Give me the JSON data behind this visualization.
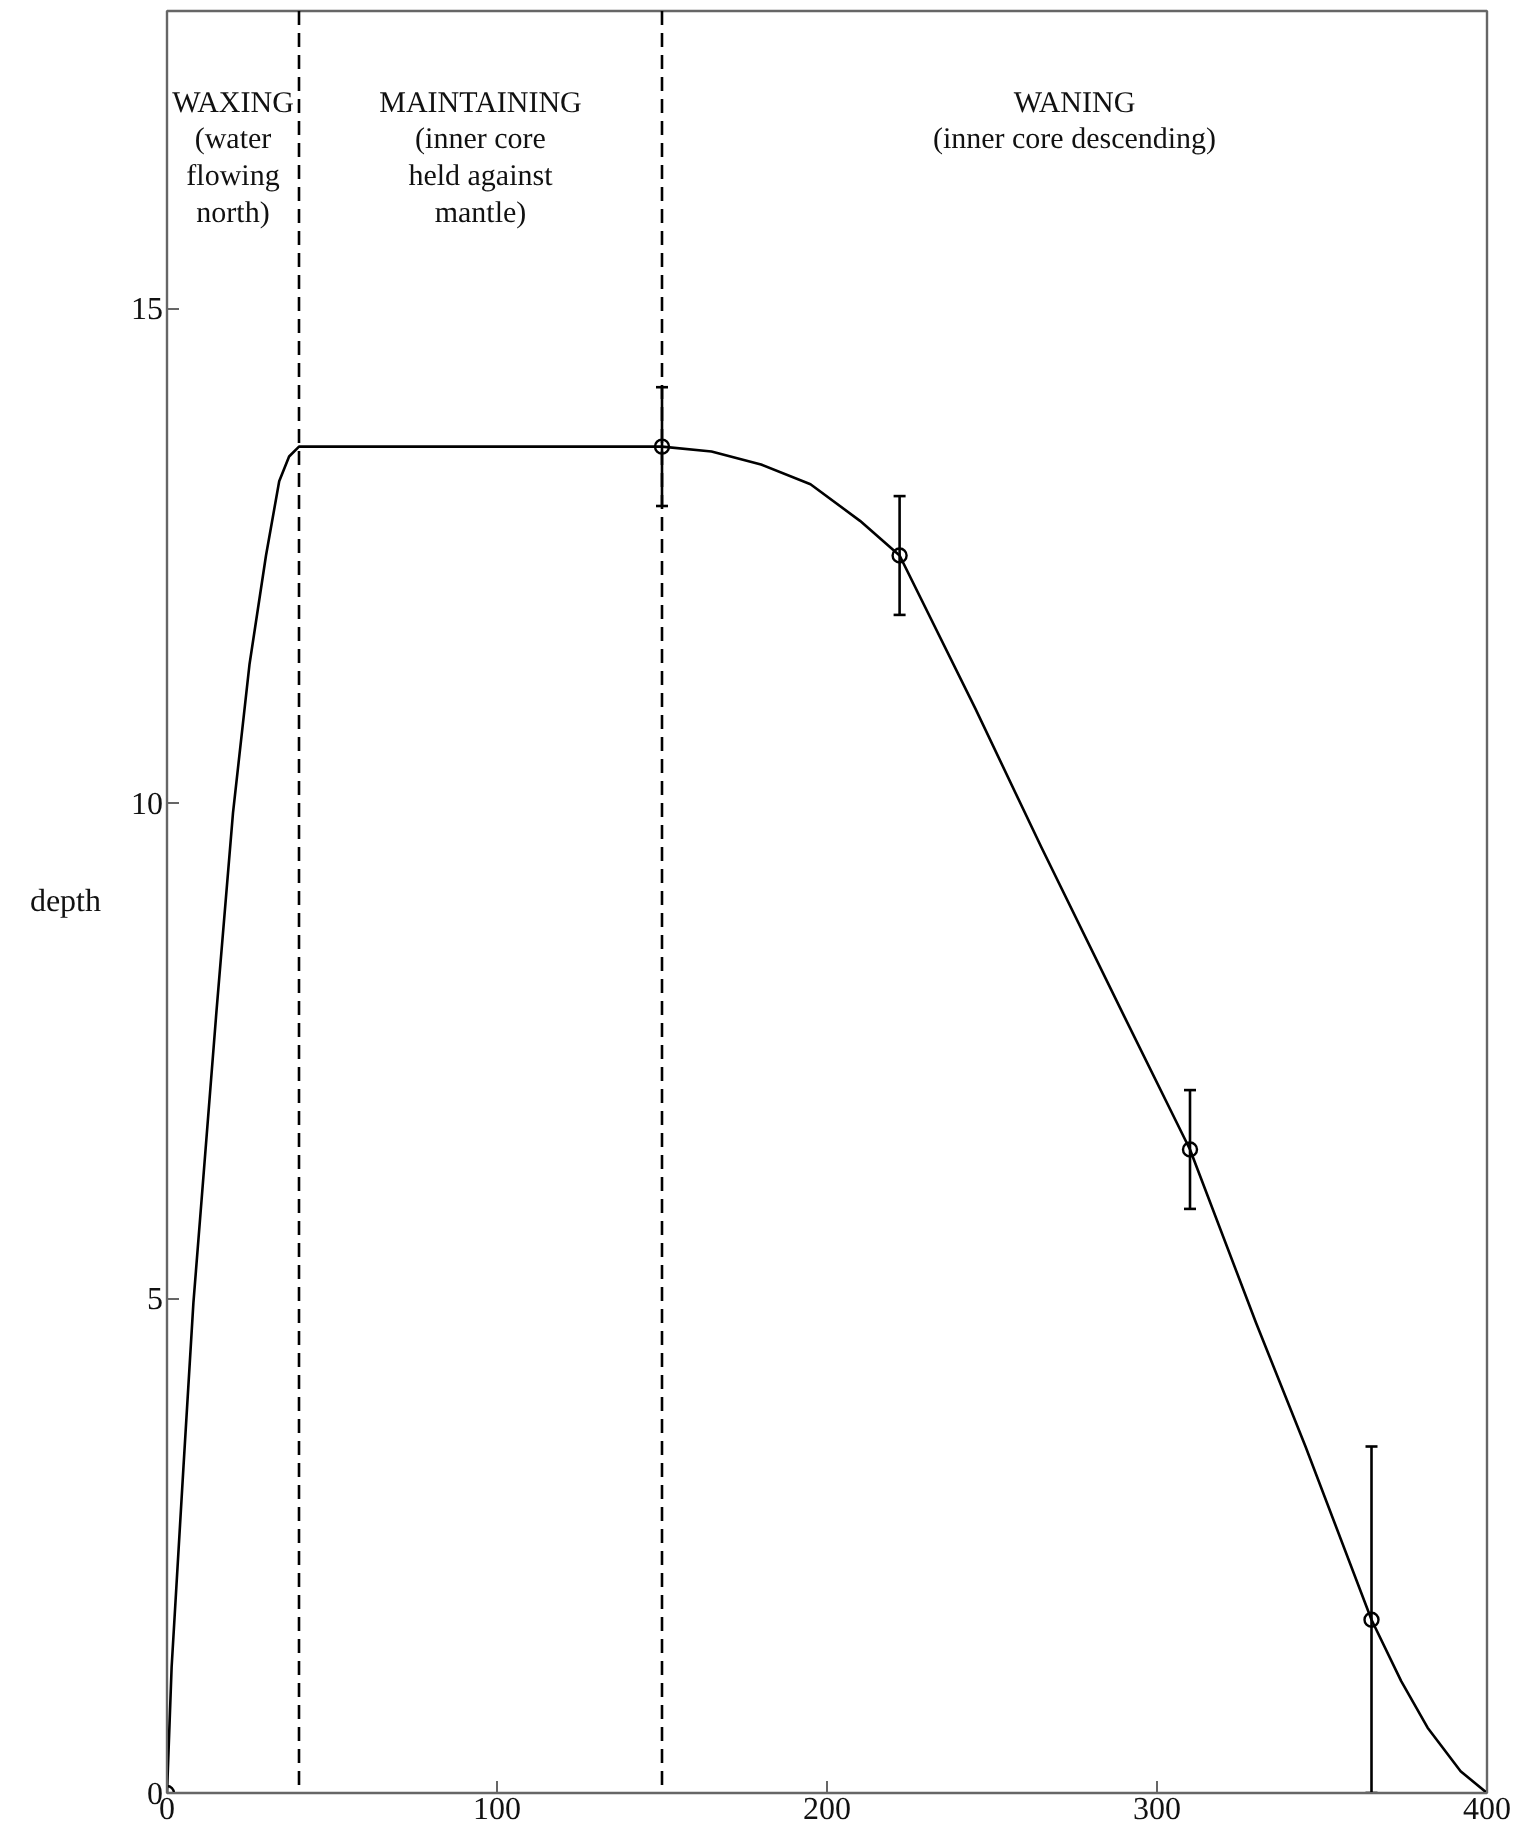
{
  "chart_data": {
    "type": "line",
    "ylabel": "depth",
    "xlim": [
      0,
      400
    ],
    "ylim": [
      0,
      18
    ],
    "xticks": [
      0,
      100,
      200,
      300,
      400
    ],
    "yticks": [
      0,
      5,
      10,
      15
    ],
    "grid": false,
    "line_style": "solid",
    "annotations": [
      "WAXING\n(water\nflowing\nnorth)",
      "MAINTAINING\n(inner core\nheld against\nmantle)",
      "WANING\n(inner core descending)"
    ],
    "ref_lines": [
      {
        "axis": "x",
        "value": 40,
        "color": "#000000",
        "line_style": "dashed"
      },
      {
        "axis": "x",
        "value": 150,
        "color": "#000000",
        "line_style": "dashed"
      }
    ],
    "series": [
      {
        "color": "#000000",
        "x": [
          0,
          1.4,
          5,
          8,
          10.5,
          15,
          20,
          25,
          30,
          34,
          37,
          40,
          150,
          165,
          180,
          195,
          210,
          222,
          245,
          265,
          290,
          310,
          330,
          345,
          365,
          374,
          382,
          392,
          400
        ],
        "values": [
          0,
          1.27,
          3.3,
          4.95,
          6.0,
          7.9,
          9.9,
          11.4,
          12.5,
          13.25,
          13.5,
          13.6,
          13.6,
          13.55,
          13.42,
          13.22,
          12.85,
          12.5,
          10.95,
          9.55,
          7.85,
          6.5,
          4.75,
          3.5,
          1.75,
          1.13,
          0.66,
          0.22,
          0
        ]
      },
      {
        "type": "scatter",
        "marker": "circle",
        "color": "#000000",
        "x": [
          0,
          150,
          222,
          310,
          365
        ],
        "values": [
          0,
          13.6,
          12.5,
          6.5,
          1.75
        ],
        "errors": [
          null,
          0.6,
          0.6,
          0.6,
          1.75
        ]
      }
    ]
  }
}
